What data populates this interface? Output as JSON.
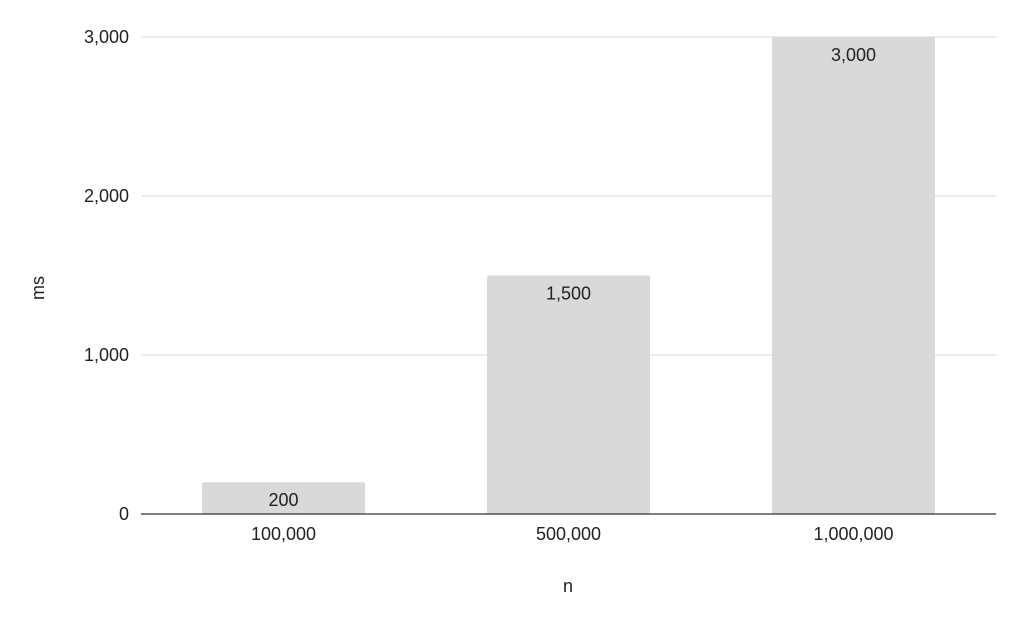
{
  "chart_data": {
    "type": "bar",
    "categories": [
      "100,000",
      "500,000",
      "1,000,000"
    ],
    "values": [
      200,
      1500,
      3000
    ],
    "value_labels": [
      "200",
      "1,500",
      "3,000"
    ],
    "xlabel": "n",
    "ylabel": "ms",
    "ylim": [
      0,
      3000
    ],
    "yticks": [
      0,
      1000,
      2000,
      3000
    ],
    "ytick_labels": [
      "0",
      "1,000",
      "2,000",
      "3,000"
    ],
    "grid": true,
    "legend": "none",
    "bar_color": "#d9d9d9",
    "axis_color": "#333333"
  }
}
